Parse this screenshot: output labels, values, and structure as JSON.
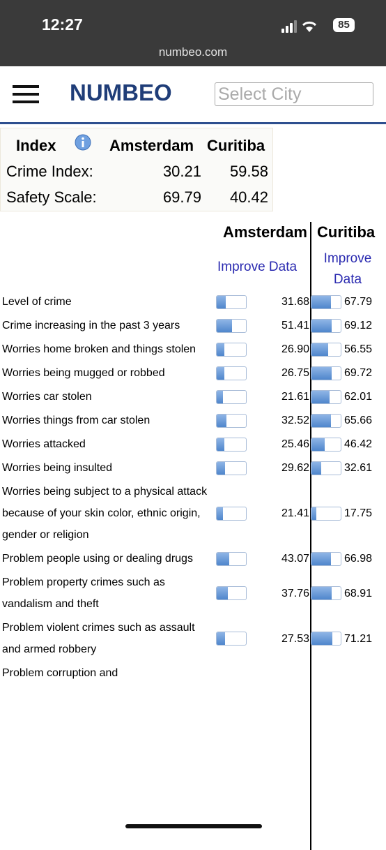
{
  "status_bar": {
    "time": "12:27",
    "battery": "85"
  },
  "browser": {
    "url": "numbeo.com"
  },
  "header": {
    "logo": "NUMBEO",
    "search_placeholder": "Select City"
  },
  "index_table": {
    "header": [
      "Index",
      "Amsterdam",
      "Curitiba"
    ],
    "rows": [
      [
        "Crime Index:",
        "30.21",
        "59.58"
      ],
      [
        "Safety Scale:",
        "69.79",
        "40.42"
      ]
    ]
  },
  "comparison_table": {
    "cities": [
      "Amsterdam",
      "Curitiba"
    ],
    "improve_links": [
      "Improve Data",
      "Improve Data"
    ],
    "rows": [
      {
        "label": "Level of crime",
        "amsterdam": "31.68",
        "curitiba": "67.79"
      },
      {
        "label": "Crime increasing in the past 3 years",
        "amsterdam": "51.41",
        "curitiba": "69.12"
      },
      {
        "label": "Worries home broken and things stolen",
        "amsterdam": "26.90",
        "curitiba": "56.55"
      },
      {
        "label": "Worries being mugged or robbed",
        "amsterdam": "26.75",
        "curitiba": "69.72"
      },
      {
        "label": "Worries car stolen",
        "amsterdam": "21.61",
        "curitiba": "62.01"
      },
      {
        "label": "Worries things from car stolen",
        "amsterdam": "32.52",
        "curitiba": "65.66"
      },
      {
        "label": "Worries attacked",
        "amsterdam": "25.46",
        "curitiba": "46.42"
      },
      {
        "label": "Worries being insulted",
        "amsterdam": "29.62",
        "curitiba": "32.61"
      },
      {
        "label": "Worries being subject to a physical attack because of your skin color, ethnic origin, gender or religion",
        "amsterdam": "21.41",
        "curitiba": "17.75"
      },
      {
        "label": "Problem people using or dealing drugs",
        "amsterdam": "43.07",
        "curitiba": "66.98"
      },
      {
        "label": "Problem property crimes such as vandalism and theft",
        "amsterdam": "37.76",
        "curitiba": "68.91"
      },
      {
        "label": "Problem violent crimes such as assault and armed robbery",
        "amsterdam": "27.53",
        "curitiba": "71.21"
      },
      {
        "label": "Problem corruption and"
      }
    ]
  }
}
